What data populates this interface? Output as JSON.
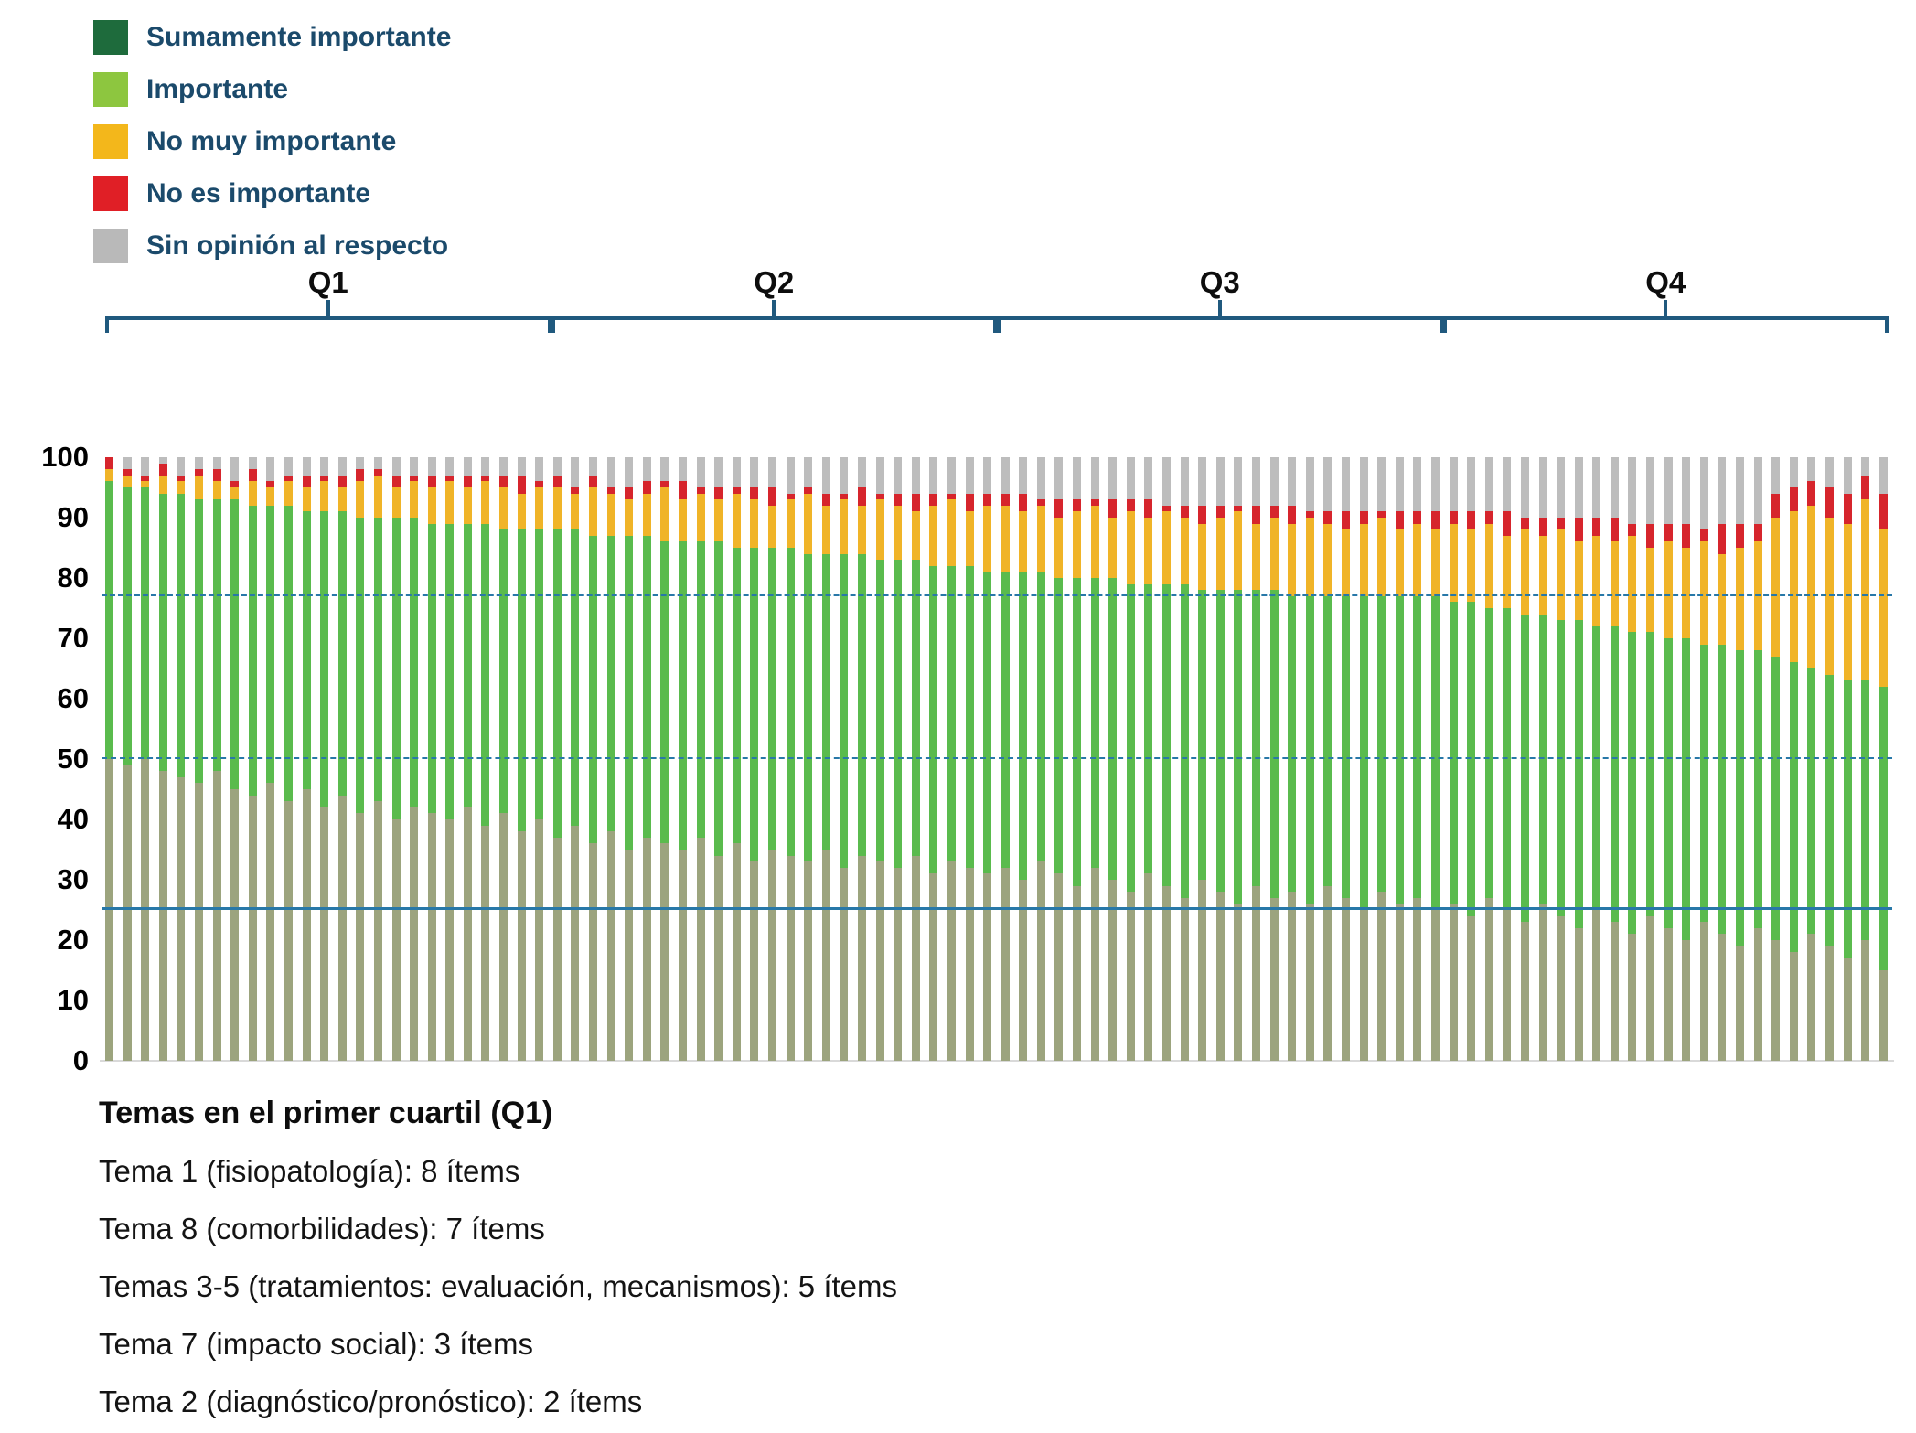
{
  "legend": {
    "text_color": "#1B4A6B",
    "items": [
      {
        "id": "sumamente-importante",
        "label": "Sumamente importante",
        "color": "#1E6B3C"
      },
      {
        "id": "importante",
        "label": "Importante",
        "color": "#8DC63F"
      },
      {
        "id": "no-muy-importante",
        "label": "No muy importante",
        "color": "#F3B71B"
      },
      {
        "id": "no-es-importante",
        "label": "No es importante",
        "color": "#E01F26"
      },
      {
        "id": "sin-opinion",
        "label": "Sin opinión al respecto",
        "color": "#B9B9B9"
      }
    ]
  },
  "chart_data": {
    "type": "bar",
    "stacked": true,
    "unit": "percent",
    "title": "",
    "xlabel": "",
    "ylabel": "",
    "ylim": [
      0,
      100
    ],
    "y_ticks": [
      0,
      10,
      20,
      30,
      40,
      50,
      60,
      70,
      80,
      90,
      100
    ],
    "grid": false,
    "legend_position": "top-left",
    "quartiles": [
      {
        "label": "Q1",
        "start": 0,
        "end": 24
      },
      {
        "label": "Q2",
        "start": 25,
        "end": 49
      },
      {
        "label": "Q3",
        "start": 50,
        "end": 74
      },
      {
        "label": "Q4",
        "start": 75,
        "end": 99
      }
    ],
    "reference_lines": [
      {
        "y": 77,
        "style": "dashed",
        "width": 3,
        "color": "#2878A8"
      },
      {
        "y": 50,
        "style": "dashed",
        "width": 2,
        "color": "#2878A8"
      },
      {
        "y": 25,
        "style": "solid",
        "width": 3,
        "color": "#2878A8"
      }
    ],
    "series": [
      {
        "name": "Sumamente importante",
        "bar_color": "#9CA47E",
        "values": [
          50,
          49,
          50,
          48,
          47,
          46,
          48,
          45,
          44,
          46,
          43,
          45,
          42,
          44,
          41,
          43,
          40,
          42,
          41,
          40,
          42,
          39,
          41,
          38,
          40,
          37,
          39,
          36,
          38,
          35,
          37,
          36,
          35,
          37,
          34,
          36,
          33,
          35,
          34,
          33,
          35,
          32,
          34,
          33,
          32,
          34,
          31,
          33,
          32,
          31,
          32,
          30,
          33,
          31,
          29,
          32,
          30,
          28,
          31,
          29,
          27,
          30,
          28,
          26,
          29,
          27,
          28,
          26,
          29,
          27,
          25,
          28,
          26,
          27,
          25,
          26,
          24,
          27,
          25,
          23,
          26,
          24,
          22,
          25,
          23,
          21,
          24,
          22,
          20,
          23,
          21,
          19,
          22,
          20,
          18,
          21,
          19,
          17,
          20,
          15
        ]
      },
      {
        "name": "Importante",
        "bar_color": "#5ABB4D",
        "values": [
          46,
          46,
          45,
          46,
          47,
          47,
          45,
          48,
          48,
          46,
          49,
          46,
          49,
          47,
          49,
          47,
          50,
          48,
          48,
          49,
          47,
          50,
          47,
          50,
          48,
          51,
          49,
          51,
          49,
          52,
          50,
          50,
          51,
          49,
          52,
          49,
          52,
          50,
          51,
          51,
          49,
          52,
          50,
          50,
          51,
          49,
          51,
          49,
          50,
          50,
          49,
          51,
          48,
          49,
          51,
          48,
          50,
          51,
          48,
          50,
          52,
          48,
          50,
          52,
          49,
          51,
          49,
          51,
          48,
          50,
          52,
          49,
          51,
          50,
          52,
          50,
          52,
          48,
          50,
          51,
          48,
          49,
          51,
          47,
          49,
          50,
          47,
          48,
          50,
          46,
          48,
          49,
          46,
          47,
          48,
          44,
          45,
          46,
          43,
          47
        ]
      },
      {
        "name": "No muy importante",
        "bar_color": "#F0B428",
        "values": [
          2,
          2,
          1,
          3,
          2,
          4,
          3,
          2,
          4,
          3,
          4,
          4,
          5,
          4,
          6,
          7,
          5,
          6,
          6,
          7,
          6,
          7,
          7,
          6,
          7,
          7,
          6,
          8,
          7,
          6,
          7,
          9,
          7,
          8,
          7,
          9,
          8,
          7,
          8,
          10,
          8,
          9,
          8,
          10,
          9,
          8,
          10,
          11,
          9,
          11,
          11,
          10,
          11,
          10,
          11,
          12,
          10,
          12,
          11,
          12,
          11,
          11,
          12,
          13,
          11,
          12,
          12,
          13,
          12,
          11,
          12,
          13,
          11,
          12,
          11,
          13,
          12,
          14,
          12,
          14,
          13,
          15,
          13,
          15,
          14,
          16,
          14,
          16,
          15,
          17,
          15,
          17,
          18,
          23,
          25,
          27,
          26,
          26,
          30,
          26
        ]
      },
      {
        "name": "No es importante",
        "bar_color": "#D6252C",
        "values": [
          2,
          1,
          1,
          2,
          1,
          1,
          2,
          1,
          2,
          1,
          1,
          2,
          1,
          2,
          2,
          1,
          2,
          1,
          2,
          1,
          2,
          1,
          2,
          3,
          1,
          2,
          1,
          2,
          1,
          2,
          2,
          1,
          3,
          1,
          2,
          1,
          2,
          3,
          1,
          1,
          2,
          1,
          3,
          1,
          2,
          3,
          2,
          1,
          3,
          2,
          2,
          3,
          1,
          3,
          2,
          1,
          3,
          2,
          3,
          1,
          2,
          3,
          2,
          1,
          3,
          2,
          3,
          1,
          2,
          3,
          2,
          1,
          3,
          2,
          3,
          2,
          3,
          2,
          4,
          2,
          3,
          2,
          4,
          3,
          4,
          2,
          4,
          3,
          4,
          2,
          5,
          4,
          3,
          4,
          4,
          4,
          5,
          5,
          4,
          6
        ]
      },
      {
        "name": "Sin opinión al respecto",
        "bar_color": "#BDBDBD",
        "values": [
          0,
          2,
          3,
          1,
          3,
          2,
          2,
          4,
          2,
          4,
          3,
          3,
          3,
          3,
          2,
          2,
          3,
          3,
          3,
          3,
          3,
          3,
          3,
          3,
          4,
          3,
          5,
          3,
          5,
          5,
          4,
          4,
          4,
          5,
          5,
          5,
          5,
          5,
          6,
          5,
          6,
          6,
          5,
          6,
          6,
          6,
          6,
          6,
          6,
          6,
          6,
          6,
          7,
          7,
          7,
          7,
          7,
          7,
          7,
          8,
          8,
          8,
          8,
          8,
          8,
          8,
          8,
          9,
          9,
          9,
          9,
          9,
          9,
          9,
          9,
          9,
          9,
          9,
          9,
          10,
          10,
          10,
          10,
          10,
          10,
          11,
          11,
          11,
          11,
          12,
          11,
          11,
          11,
          6,
          5,
          4,
          5,
          6,
          3,
          6
        ]
      }
    ]
  },
  "footer": {
    "title": "Temas en el primer cuartil (Q1)",
    "lines": [
      "Tema 1 (fisiopatología): 8 ítems",
      "Tema 8 (comorbilidades): 7 ítems",
      "Temas 3-5 (tratamientos: evaluación, mecanismos): 5 ítems",
      "Tema 7 (impacto social): 3 ítems",
      "Tema 2 (diagnóstico/pronóstico): 2 ítems"
    ]
  }
}
